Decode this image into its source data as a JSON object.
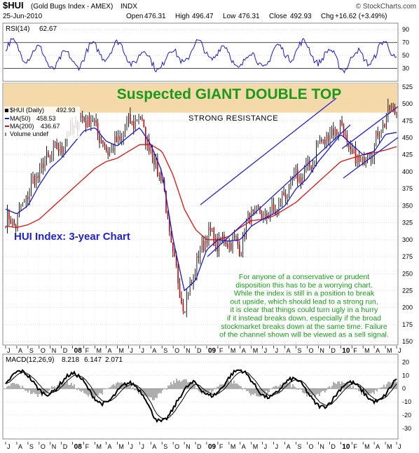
{
  "header": {
    "symbol": "$HUI",
    "name": "(Gold Bugs Index - AMEX)",
    "exchange": "INDX",
    "source": "© StockCharts.com",
    "date": "25-Jun-2010",
    "open_label": "Open",
    "open": "476.31",
    "high_label": "High",
    "high": "496.47",
    "low_label": "Low",
    "low": "476.31",
    "close_label": "Close",
    "close": "492.93",
    "chg_label": "Chg",
    "chg": "+16.62 (+3.49%)"
  },
  "rsi_panel": {
    "label": "RSI(14)",
    "value": "62.67",
    "ticks": [
      90,
      70,
      50,
      30
    ],
    "ylim": [
      10,
      100
    ],
    "overbought": 70,
    "oversold": 30,
    "line_color": "#1a1acc"
  },
  "price_panel": {
    "main_title": "Suspected GIANT DOUBLE TOP",
    "resistance_label": "STRONG RESISTANCE",
    "chart_label": "HUI Index: 3-year Chart",
    "legend": {
      "price_label": "$HUI (Daily)",
      "price_value": "492.93",
      "ma50_label": "MA(50)",
      "ma50_value": "458.53",
      "ma200_label": "MA(200)",
      "ma200_value": "436.67",
      "volume_label": "Volume undef"
    },
    "commentary": [
      "For anyone of a conservative or prudent",
      "disposition this has to be a worrying chart.",
      "While the index is still in a position to break",
      "out upside, which should lead to a strong run,",
      "it is clear that things could turn ugly in a hurry",
      "if it instead breaks down, especially if the broad",
      "stockmarket breaks down at the same time. Failure",
      "of the channel shown will be viewed as a sell signal."
    ],
    "price_ticks": [
      525,
      500,
      475,
      450,
      425,
      400,
      375,
      350,
      325,
      300,
      275,
      250,
      225,
      200,
      175,
      150
    ],
    "ylim": [
      145,
      530
    ],
    "title_color": "#1a9a1a",
    "label_color": "#2222cc",
    "commentary_color": "#1a9a1a",
    "ma50_color": "#1a1acc",
    "ma200_color": "#dd1111",
    "channel_color": "#2222cc",
    "resistance_band": [
      487,
      530
    ],
    "resistance_color": "#f5d9a8"
  },
  "x_axis": {
    "labels": [
      "J",
      "A",
      "S",
      "O",
      "N",
      "D",
      "08",
      "F",
      "M",
      "A",
      "M",
      "J",
      "J",
      "A",
      "S",
      "O",
      "N",
      "D",
      "09",
      "F",
      "M",
      "A",
      "M",
      "J",
      "J",
      "A",
      "S",
      "O",
      "N",
      "D",
      "10",
      "F",
      "M",
      "A",
      "M",
      "J"
    ],
    "year_labels": [
      "08",
      "09",
      "10"
    ]
  },
  "macd_panel": {
    "label": "MACD(12,26,9)",
    "macd": "8.218",
    "signal": "6.147",
    "hist": "2.071",
    "ticks": [
      20,
      10,
      0,
      -10,
      -20,
      -30
    ],
    "ylim": [
      -38,
      26
    ],
    "hist_color": "#999999"
  },
  "chart_data": {
    "type": "line",
    "title": "Suspected GIANT DOUBLE TOP",
    "x": [
      "2007-07",
      "2007-08",
      "2007-09",
      "2007-10",
      "2007-11",
      "2007-12",
      "2008-01",
      "2008-02",
      "2008-03",
      "2008-04",
      "2008-05",
      "2008-06",
      "2008-07",
      "2008-08",
      "2008-09",
      "2008-10",
      "2008-11",
      "2008-12",
      "2009-01",
      "2009-02",
      "2009-03",
      "2009-04",
      "2009-05",
      "2009-06",
      "2009-07",
      "2009-08",
      "2009-09",
      "2009-10",
      "2009-11",
      "2009-12",
      "2010-01",
      "2010-02",
      "2010-03",
      "2010-04",
      "2010-05",
      "2010-06"
    ],
    "series": [
      {
        "name": "$HUI (Daily)",
        "values": [
          330,
          325,
          370,
          400,
          425,
          435,
          465,
          480,
          470,
          430,
          440,
          470,
          480,
          430,
          390,
          270,
          200,
          260,
          310,
          295,
          300,
          290,
          340,
          335,
          340,
          365,
          390,
          400,
          440,
          455,
          470,
          420,
          415,
          440,
          480,
          495
        ]
      },
      {
        "name": "MA(50)",
        "values": [
          345,
          338,
          350,
          380,
          405,
          420,
          440,
          460,
          465,
          445,
          438,
          452,
          465,
          440,
          400,
          300,
          225,
          240,
          285,
          300,
          298,
          300,
          320,
          330,
          338,
          350,
          375,
          390,
          415,
          435,
          455,
          440,
          425,
          430,
          455,
          458
        ]
      },
      {
        "name": "MA(200)",
        "values": [
          320,
          318,
          322,
          330,
          345,
          360,
          375,
          390,
          405,
          415,
          420,
          430,
          440,
          440,
          430,
          395,
          345,
          315,
          300,
          300,
          305,
          318,
          328,
          330,
          335,
          345,
          355,
          370,
          385,
          400,
          415,
          420,
          425,
          428,
          432,
          437
        ]
      }
    ],
    "ylim": [
      145,
      530
    ]
  }
}
